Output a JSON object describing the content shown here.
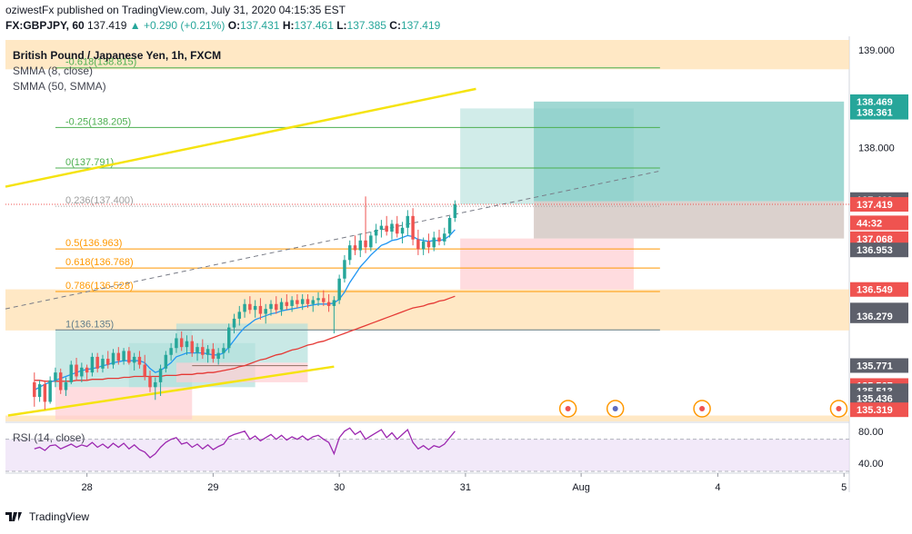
{
  "header": {
    "line1": "oziwestFx published on TradingView.com, July 31, 2020 04:15:35 EST",
    "symbol": "FX:GBPJPY, 60",
    "last": "137.419",
    "change": "▲ +0.290 (+0.21%)",
    "o_label": "O:",
    "o": "137.431",
    "h_label": "H:",
    "h": "137.461",
    "l_label": "L:",
    "l": "137.385",
    "c_label": "C:",
    "c": "137.419"
  },
  "legend": {
    "title": "British Pound / Japanese Yen, 1h, FXCM",
    "smma8": "SMMA (8, close)",
    "smma50": "SMMA (50, SMMA)",
    "rsi": "RSI (14, close)"
  },
  "footer": {
    "brand": "TradingView"
  },
  "colors": {
    "up": "#26a69a",
    "down": "#ef5350",
    "smma8": "#2196f3",
    "smma50": "#e53935",
    "trend": "#f5e30f",
    "fib_green": "#4caf50",
    "fib_orange": "#ff9800",
    "band": "#ffe0b2",
    "long_tp": "#b2dfdb",
    "long_sl": "#ffcdd2",
    "rsi_fill": "#ede0f7",
    "rsi_line": "#9c27b0"
  },
  "chart_data": {
    "type": "candlestick",
    "symbol": "GBPJPY",
    "price_axis": {
      "ylim": [
        135.2,
        139.1
      ],
      "ticks": [
        "139.000",
        "138.000"
      ],
      "labels": [
        {
          "value": 138.469,
          "text": "138.469",
          "color": "#26a69a"
        },
        {
          "value": 138.361,
          "text": "138.361",
          "color": "#26a69a"
        },
        {
          "value": 137.468,
          "text": "137.468",
          "color": "#5d606b"
        },
        {
          "value": 137.419,
          "text": "137.419",
          "color": "#ef5350"
        },
        {
          "value": 137.23,
          "text": "44:32",
          "color": "#ef5350"
        },
        {
          "value": 137.068,
          "text": "137.068",
          "color": "#ef5350"
        },
        {
          "value": 136.953,
          "text": "136.953",
          "color": "#5d606b"
        },
        {
          "value": 136.549,
          "text": "136.549",
          "color": "#ef5350"
        },
        {
          "value": 136.339,
          "text": "136.339",
          "color": "#5d606b"
        },
        {
          "value": 136.314,
          "text": "136.314",
          "color": "#5d606b"
        },
        {
          "value": 136.279,
          "text": "136.279",
          "color": "#5d606b"
        },
        {
          "value": 135.771,
          "text": "135.771",
          "color": "#5d606b"
        },
        {
          "value": 135.567,
          "text": "135.567",
          "color": "#ef5350"
        },
        {
          "value": 135.513,
          "text": "135.513",
          "color": "#5d606b"
        },
        {
          "value": 135.436,
          "text": "135.436",
          "color": "#5d606b"
        },
        {
          "value": 135.319,
          "text": "135.319",
          "color": "#ef5350"
        }
      ]
    },
    "time_axis": {
      "ticks": [
        {
          "t": 10,
          "label": "28"
        },
        {
          "t": 34,
          "label": "29"
        },
        {
          "t": 58,
          "label": "30"
        },
        {
          "t": 82,
          "label": "31"
        },
        {
          "t": 104,
          "label": "Aug"
        },
        {
          "t": 130,
          "label": "4"
        },
        {
          "t": 154,
          "label": "5"
        }
      ],
      "xlim": [
        -5.5,
        155
      ]
    },
    "fibonacci": [
      {
        "label": "-0.618(138.815)",
        "value": 138.815,
        "color": "#4caf50"
      },
      {
        "label": "-0.25(138.205)",
        "value": 138.205,
        "color": "#4caf50"
      },
      {
        "label": "0(137.791)",
        "value": 137.791,
        "color": "#4caf50"
      },
      {
        "label": "0.236(137.400)",
        "value": 137.4,
        "color": "#9e9e9e"
      },
      {
        "label": "0.5(136.963)",
        "value": 136.963,
        "color": "#ff9800"
      },
      {
        "label": "0.618(136.768)",
        "value": 136.768,
        "color": "#ff9800"
      },
      {
        "label": "0.786(136.528)",
        "value": 136.528,
        "color": "#ff9800"
      },
      {
        "label": "1(136.135)",
        "value": 136.135,
        "color": "#607d8b"
      }
    ],
    "candles": [
      [
        135.6,
        135.7,
        135.35,
        135.45
      ],
      [
        135.45,
        135.62,
        135.4,
        135.58
      ],
      [
        135.58,
        135.62,
        135.32,
        135.4
      ],
      [
        135.4,
        135.66,
        135.38,
        135.62
      ],
      [
        135.62,
        135.75,
        135.55,
        135.7
      ],
      [
        135.7,
        135.74,
        135.48,
        135.52
      ],
      [
        135.52,
        135.65,
        135.46,
        135.6
      ],
      [
        135.6,
        135.82,
        135.58,
        135.78
      ],
      [
        135.78,
        135.85,
        135.62,
        135.66
      ],
      [
        135.66,
        135.8,
        135.6,
        135.75
      ],
      [
        135.75,
        135.78,
        135.62,
        135.7
      ],
      [
        135.7,
        135.9,
        135.66,
        135.86
      ],
      [
        135.86,
        135.9,
        135.7,
        135.74
      ],
      [
        135.74,
        135.88,
        135.7,
        135.84
      ],
      [
        135.84,
        135.92,
        135.74,
        135.78
      ],
      [
        135.78,
        135.94,
        135.74,
        135.9
      ],
      [
        135.9,
        135.96,
        135.78,
        135.82
      ],
      [
        135.82,
        135.95,
        135.78,
        135.92
      ],
      [
        135.92,
        135.96,
        135.78,
        135.8
      ],
      [
        135.8,
        135.9,
        135.72,
        135.86
      ],
      [
        135.86,
        135.92,
        135.74,
        135.78
      ],
      [
        135.78,
        135.88,
        135.62,
        135.66
      ],
      [
        135.66,
        135.72,
        135.5,
        135.55
      ],
      [
        135.55,
        135.65,
        135.42,
        135.6
      ],
      [
        135.6,
        135.78,
        135.46,
        135.74
      ],
      [
        135.74,
        135.92,
        135.7,
        135.88
      ],
      [
        135.88,
        136.0,
        135.82,
        135.95
      ],
      [
        135.95,
        136.1,
        135.9,
        136.05
      ],
      [
        136.05,
        136.12,
        135.92,
        135.96
      ],
      [
        135.96,
        136.08,
        135.88,
        136.02
      ],
      [
        136.02,
        136.08,
        135.86,
        135.9
      ],
      [
        135.9,
        136.0,
        135.82,
        135.96
      ],
      [
        135.96,
        136.04,
        135.84,
        135.88
      ],
      [
        135.88,
        135.98,
        135.8,
        135.94
      ],
      [
        135.94,
        136.0,
        135.8,
        135.84
      ],
      [
        135.84,
        135.95,
        135.78,
        135.9
      ],
      [
        135.9,
        136.0,
        135.84,
        135.95
      ],
      [
        135.95,
        136.2,
        135.9,
        136.16
      ],
      [
        136.16,
        136.3,
        136.1,
        136.25
      ],
      [
        136.25,
        136.38,
        136.18,
        136.32
      ],
      [
        136.32,
        136.45,
        136.26,
        136.4
      ],
      [
        136.4,
        136.48,
        136.3,
        136.34
      ],
      [
        136.34,
        136.44,
        136.26,
        136.38
      ],
      [
        136.38,
        136.46,
        136.24,
        136.3
      ],
      [
        136.3,
        136.4,
        136.2,
        136.35
      ],
      [
        136.35,
        136.44,
        136.28,
        136.4
      ],
      [
        136.4,
        136.48,
        136.3,
        136.34
      ],
      [
        136.34,
        136.46,
        136.28,
        136.42
      ],
      [
        136.42,
        136.5,
        136.34,
        136.38
      ],
      [
        136.38,
        136.48,
        136.32,
        136.44
      ],
      [
        136.44,
        136.5,
        136.36,
        136.4
      ],
      [
        136.4,
        136.5,
        136.34,
        136.45
      ],
      [
        136.45,
        136.5,
        136.36,
        136.4
      ],
      [
        136.4,
        136.48,
        136.32,
        136.44
      ],
      [
        136.44,
        136.52,
        136.38,
        136.46
      ],
      [
        136.46,
        136.54,
        136.38,
        136.42
      ],
      [
        136.42,
        136.5,
        136.32,
        136.38
      ],
      [
        136.38,
        136.48,
        136.1,
        136.44
      ],
      [
        136.44,
        136.7,
        136.4,
        136.66
      ],
      [
        136.66,
        136.9,
        136.62,
        136.85
      ],
      [
        136.85,
        137.05,
        136.8,
        137.0
      ],
      [
        137.0,
        137.1,
        136.9,
        136.95
      ],
      [
        136.95,
        137.12,
        136.88,
        137.05
      ],
      [
        137.05,
        137.5,
        136.92,
        136.98
      ],
      [
        136.98,
        137.14,
        136.94,
        137.1
      ],
      [
        137.1,
        137.22,
        137.02,
        137.16
      ],
      [
        137.16,
        137.26,
        137.08,
        137.2
      ],
      [
        137.2,
        137.3,
        137.1,
        137.14
      ],
      [
        137.14,
        137.26,
        137.06,
        137.22
      ],
      [
        137.22,
        137.3,
        137.08,
        137.12
      ],
      [
        137.12,
        137.24,
        137.02,
        137.18
      ],
      [
        137.18,
        137.36,
        137.1,
        137.3
      ],
      [
        137.3,
        137.38,
        137.0,
        137.06
      ],
      [
        137.06,
        137.16,
        136.9,
        136.96
      ],
      [
        136.96,
        137.08,
        136.9,
        137.04
      ],
      [
        137.04,
        137.12,
        136.92,
        136.98
      ],
      [
        136.98,
        137.14,
        136.94,
        137.08
      ],
      [
        137.08,
        137.16,
        137.0,
        137.04
      ],
      [
        137.04,
        137.18,
        137.0,
        137.12
      ],
      [
        137.12,
        137.3,
        137.08,
        137.28
      ],
      [
        137.28,
        137.46,
        137.24,
        137.42
      ]
    ],
    "series": [
      {
        "name": "SMMA (8, close)",
        "values": [
          135.52,
          135.55,
          135.58,
          135.6,
          135.62,
          135.64,
          135.66,
          135.68,
          135.7,
          135.72,
          135.73,
          135.74,
          135.75,
          135.77,
          135.78,
          135.8,
          135.81,
          135.82,
          135.82,
          135.82,
          135.82,
          135.8,
          135.74,
          135.7,
          135.72,
          135.76,
          135.8,
          135.86,
          135.88,
          135.9,
          135.9,
          135.9,
          135.9,
          135.89,
          135.88,
          135.88,
          135.9,
          135.96,
          136.03,
          136.1,
          136.16,
          136.2,
          136.24,
          136.26,
          136.28,
          136.3,
          136.31,
          136.33,
          136.34,
          136.35,
          136.36,
          136.37,
          136.38,
          136.39,
          136.4,
          136.4,
          136.4,
          136.41,
          136.45,
          136.52,
          136.62,
          136.7,
          136.78,
          136.84,
          136.9,
          136.95,
          137.0,
          137.02,
          137.05,
          137.06,
          137.08,
          137.1,
          137.09,
          137.06,
          137.05,
          137.04,
          137.05,
          137.05,
          137.06,
          137.1,
          137.16
        ]
      },
      {
        "name": "SMMA (50, SMMA)",
        "values": [
          135.62,
          135.62,
          135.61,
          135.61,
          135.61,
          135.61,
          135.61,
          135.61,
          135.62,
          135.62,
          135.62,
          135.63,
          135.63,
          135.63,
          135.64,
          135.64,
          135.64,
          135.65,
          135.65,
          135.66,
          135.66,
          135.66,
          135.66,
          135.66,
          135.66,
          135.67,
          135.67,
          135.67,
          135.68,
          135.68,
          135.68,
          135.69,
          135.69,
          135.7,
          135.7,
          135.71,
          135.72,
          135.73,
          135.74,
          135.76,
          135.77,
          135.79,
          135.81,
          135.83,
          135.84,
          135.86,
          135.88,
          135.89,
          135.91,
          135.93,
          135.94,
          135.96,
          135.98,
          135.99,
          136.01,
          136.02,
          136.04,
          136.06,
          136.08,
          136.1,
          136.12,
          136.14,
          136.16,
          136.18,
          136.2,
          136.22,
          136.24,
          136.26,
          136.28,
          136.3,
          136.32,
          136.34,
          136.36,
          136.37,
          136.38,
          136.4,
          136.41,
          136.43,
          136.44,
          136.46,
          136.48
        ]
      }
    ],
    "rsi": {
      "ylim": [
        30,
        90
      ],
      "ticks": [
        "80.00",
        "40.00"
      ],
      "values": [
        58,
        60,
        56,
        62,
        63,
        58,
        61,
        64,
        60,
        63,
        61,
        66,
        60,
        64,
        59,
        65,
        60,
        65,
        58,
        63,
        57,
        54,
        47,
        52,
        60,
        66,
        70,
        72,
        64,
        66,
        60,
        64,
        58,
        63,
        57,
        61,
        64,
        73,
        76,
        78,
        80,
        70,
        74,
        68,
        72,
        76,
        70,
        75,
        69,
        73,
        70,
        74,
        69,
        73,
        75,
        70,
        66,
        52,
        72,
        80,
        84,
        76,
        80,
        70,
        74,
        78,
        82,
        72,
        78,
        70,
        76,
        82,
        66,
        58,
        62,
        57,
        62,
        60,
        64,
        72,
        80
      ]
    }
  }
}
